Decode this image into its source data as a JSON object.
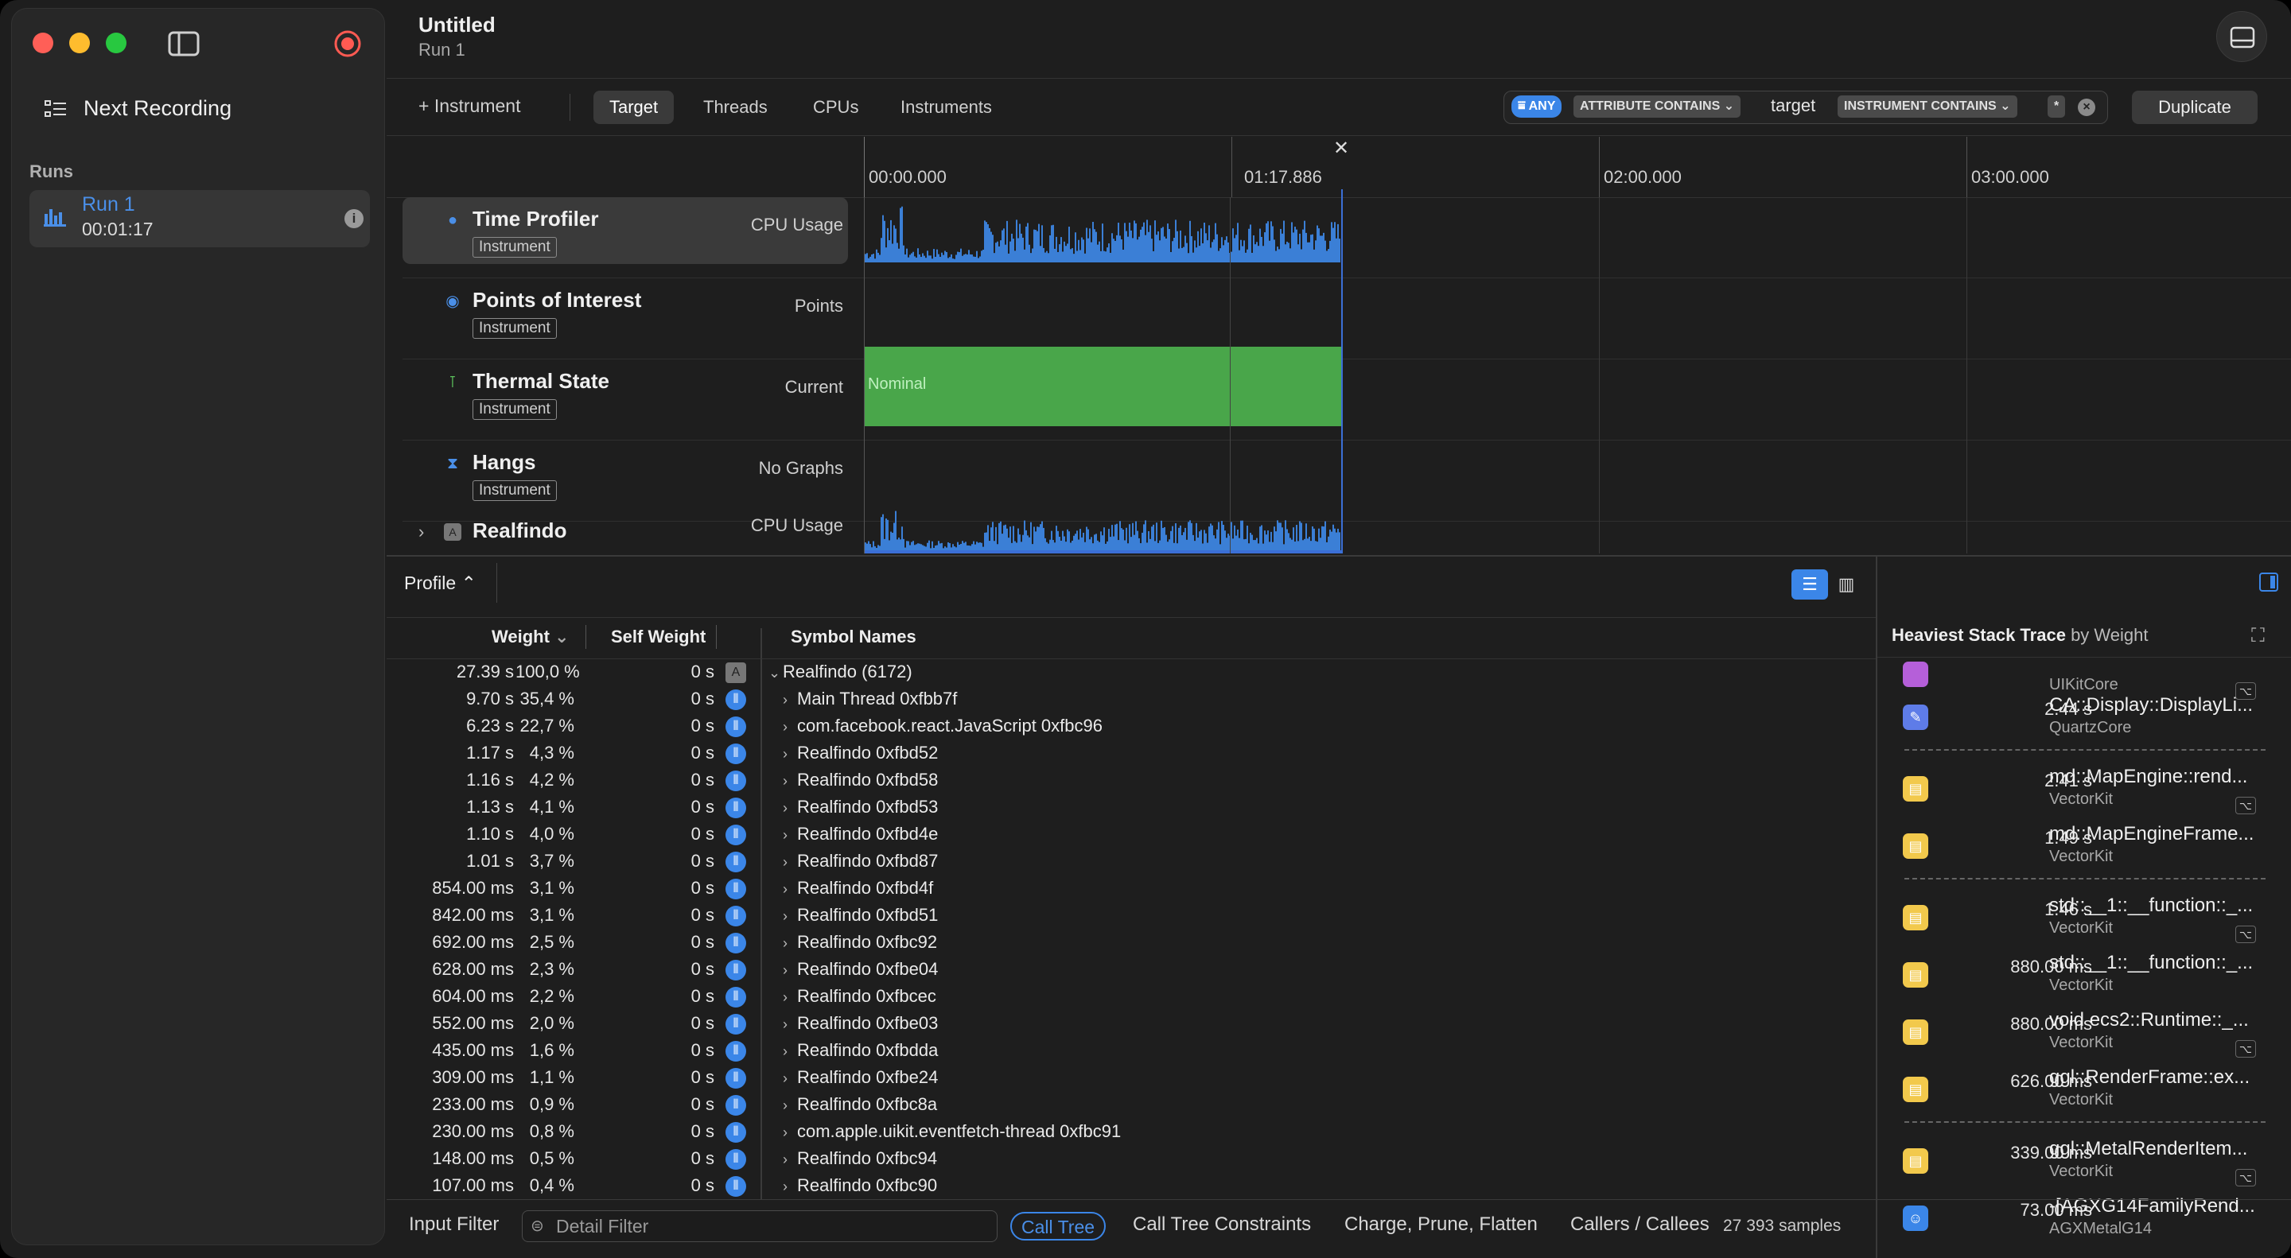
{
  "window": {
    "title": "Untitled",
    "subtitle": "Run 1"
  },
  "sidebar": {
    "next_recording": "Next Recording",
    "runs_header": "Runs",
    "run": {
      "name": "Run 1",
      "duration": "00:01:17"
    }
  },
  "toolbar": {
    "instrument_btn": "+ Instrument",
    "tabs": [
      "Target",
      "Threads",
      "CPUs",
      "Instruments"
    ],
    "selected_tab": "Target",
    "filter": {
      "any": "ANY",
      "attr": "ATTRIBUTE CONTAINS",
      "value": "target",
      "instr": "INSTRUMENT CONTAINS",
      "star": "*"
    },
    "duplicate": "Duplicate"
  },
  "timeline": {
    "ticks": [
      "00:00.000",
      "01:17.886",
      "02:00.000",
      "03:00.000"
    ],
    "tracks": [
      {
        "name": "Time Profiler",
        "badge": "Instrument",
        "kind": "CPU Usage"
      },
      {
        "name": "Points of Interest",
        "badge": "Instrument",
        "kind": "Points"
      },
      {
        "name": "Thermal State",
        "badge": "Instrument",
        "kind": "Current",
        "state": "Nominal"
      },
      {
        "name": "Hangs",
        "badge": "Instrument",
        "kind": "No Graphs"
      },
      {
        "name": "Realfindo",
        "badge": "",
        "kind": "CPU Usage"
      }
    ]
  },
  "detail": {
    "view_label": "Profile",
    "columns": {
      "weight": "Weight",
      "self": "Self Weight",
      "symbol": "Symbol Names"
    },
    "rows": [
      {
        "w": "27.39 s",
        "p": "100,0 %",
        "s": "0 s",
        "n": "Realfindo (6172)"
      },
      {
        "w": "9.70 s",
        "p": "35,4 %",
        "s": "0 s",
        "n": "Main Thread  0xfbb7f"
      },
      {
        "w": "6.23 s",
        "p": "22,7 %",
        "s": "0 s",
        "n": "com.facebook.react.JavaScript  0xfbc96"
      },
      {
        "w": "1.17 s",
        "p": "4,3 %",
        "s": "0 s",
        "n": "Realfindo  0xfbd52"
      },
      {
        "w": "1.16 s",
        "p": "4,2 %",
        "s": "0 s",
        "n": "Realfindo  0xfbd58"
      },
      {
        "w": "1.13 s",
        "p": "4,1 %",
        "s": "0 s",
        "n": "Realfindo  0xfbd53"
      },
      {
        "w": "1.10 s",
        "p": "4,0 %",
        "s": "0 s",
        "n": "Realfindo  0xfbd4e"
      },
      {
        "w": "1.01 s",
        "p": "3,7 %",
        "s": "0 s",
        "n": "Realfindo  0xfbd87"
      },
      {
        "w": "854.00 ms",
        "p": "3,1 %",
        "s": "0 s",
        "n": "Realfindo  0xfbd4f"
      },
      {
        "w": "842.00 ms",
        "p": "3,1 %",
        "s": "0 s",
        "n": "Realfindo  0xfbd51"
      },
      {
        "w": "692.00 ms",
        "p": "2,5 %",
        "s": "0 s",
        "n": "Realfindo  0xfbc92"
      },
      {
        "w": "628.00 ms",
        "p": "2,3 %",
        "s": "0 s",
        "n": "Realfindo  0xfbe04"
      },
      {
        "w": "604.00 ms",
        "p": "2,2 %",
        "s": "0 s",
        "n": "Realfindo  0xfbcec"
      },
      {
        "w": "552.00 ms",
        "p": "2,0 %",
        "s": "0 s",
        "n": "Realfindo  0xfbe03"
      },
      {
        "w": "435.00 ms",
        "p": "1,6 %",
        "s": "0 s",
        "n": "Realfindo  0xfbdda"
      },
      {
        "w": "309.00 ms",
        "p": "1,1 %",
        "s": "0 s",
        "n": "Realfindo  0xfbe24"
      },
      {
        "w": "233.00 ms",
        "p": "0,9 %",
        "s": "0 s",
        "n": "Realfindo  0xfbc8a"
      },
      {
        "w": "230.00 ms",
        "p": "0,8 %",
        "s": "0 s",
        "n": "com.apple.uikit.eventfetch-thread  0xfbc91"
      },
      {
        "w": "148.00 ms",
        "p": "0,5 %",
        "s": "0 s",
        "n": "Realfindo  0xfbc94"
      },
      {
        "w": "107.00 ms",
        "p": "0,4 %",
        "s": "0 s",
        "n": "Realfindo  0xfbc90"
      }
    ]
  },
  "heaviest": {
    "title": "Heaviest Stack Trace",
    "by": "by Weight",
    "items": [
      {
        "t": "",
        "n": "",
        "lib": "UIKitCore"
      },
      {
        "t": "2.44 s",
        "n": "CA::Display::DisplayLi...",
        "lib": "QuartzCore"
      },
      {
        "t": "2.41 s",
        "n": "md::MapEngine::rend...",
        "lib": "VectorKit"
      },
      {
        "t": "1.49 s",
        "n": "md::MapEngineFrame...",
        "lib": "VectorKit"
      },
      {
        "t": "1.46 s",
        "n": "std::__1::__function::_...",
        "lib": "VectorKit"
      },
      {
        "t": "880.00 ms",
        "n": "std::__1::__function::_...",
        "lib": "VectorKit"
      },
      {
        "t": "880.00 ms",
        "n": "void ecs2::Runtime::_...",
        "lib": "VectorKit"
      },
      {
        "t": "626.00 ms",
        "n": "ggl::RenderFrame::ex...",
        "lib": "VectorKit"
      },
      {
        "t": "339.00 ms",
        "n": "ggl::MetalRenderItem...",
        "lib": "VectorKit"
      },
      {
        "t": "73.00 ms",
        "n": "-[AGXG14FamilyRend...",
        "lib": "AGXMetalG14"
      }
    ]
  },
  "bottom": {
    "input_filter": "Input Filter",
    "detail_filter": "Detail Filter",
    "call_tree": "Call Tree",
    "constraints": "Call Tree Constraints",
    "charge": "Charge, Prune, Flatten",
    "callers": "Callers / Callees",
    "samples": "27 393 samples"
  }
}
